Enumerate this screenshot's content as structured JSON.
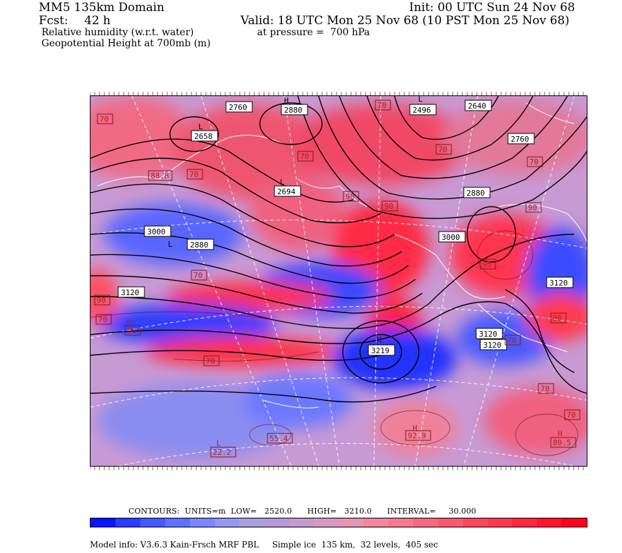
{
  "header": {
    "domain": "MM5 135km Domain",
    "init": "Init: 00 UTC Sun 24 Nov 68",
    "fcst_label": "Fcst:",
    "fcst_value": "42 h",
    "valid": "Valid: 18 UTC Mon 25 Nov 68 (10 PST Mon 25 Nov 68)",
    "field1": "Relative humidity (w.r.t. water)",
    "field1_level": "at pressure =  700 hPa",
    "field2": "Geopotential Height at 700mb (m)"
  },
  "map_labels": {
    "height": [
      {
        "text": "2760"
      },
      {
        "text": "2880"
      },
      {
        "text": "2496"
      },
      {
        "text": "2640"
      },
      {
        "text": "2760"
      },
      {
        "text": "2658"
      },
      {
        "text": "2694"
      },
      {
        "text": "3000"
      },
      {
        "text": "2880"
      },
      {
        "text": "2880"
      },
      {
        "text": "3000"
      },
      {
        "text": "3120"
      },
      {
        "text": "3120"
      },
      {
        "text": "3219"
      },
      {
        "text": "3120"
      },
      {
        "text": "3120"
      }
    ],
    "markers": [
      {
        "text": "H"
      },
      {
        "text": "L"
      },
      {
        "text": "L"
      },
      {
        "text": "L"
      },
      {
        "text": "L"
      },
      {
        "text": "H"
      },
      {
        "text": "H"
      },
      {
        "text": "H"
      },
      {
        "text": "H"
      },
      {
        "text": "L"
      }
    ],
    "rh": [
      {
        "text": "70"
      },
      {
        "text": "70"
      },
      {
        "text": "70"
      },
      {
        "text": "70"
      },
      {
        "text": "70"
      },
      {
        "text": "90"
      },
      {
        "text": "90"
      },
      {
        "text": "70"
      },
      {
        "text": "70"
      },
      {
        "text": "90"
      },
      {
        "text": "90"
      },
      {
        "text": "70"
      },
      {
        "text": "70"
      },
      {
        "text": "70"
      },
      {
        "text": "70"
      },
      {
        "text": "90"
      },
      {
        "text": "70"
      },
      {
        "text": "88.8"
      },
      {
        "text": "95"
      },
      {
        "text": "55.4"
      },
      {
        "text": "22.2"
      },
      {
        "text": "92.9"
      },
      {
        "text": "89.5"
      },
      {
        "text": "90"
      }
    ]
  },
  "colorbar": {
    "contours": "CONTOURS:",
    "units": "UNITS=m",
    "low": "LOW=   2520.0",
    "high": "HIGH=   3210.0",
    "interval": "INTERVAL=     30.000",
    "colors": [
      "#0a14ff",
      "#2a3cff",
      "#4658ff",
      "#6070ff",
      "#7c88ff",
      "#9698f0",
      "#a8a0e0",
      "#b49ad8",
      "#c49ad0",
      "#d49ac4",
      "#e496b4",
      "#f088a0",
      "#f47890",
      "#f66880",
      "#f85870",
      "#fa4860",
      "#fc3850",
      "#fe2840",
      "#ff1430",
      "#ff0020"
    ]
  },
  "footer": {
    "model": "Model info: V3.6.3 Kain-Frsch MRF PBL",
    "ice": "Simple ice  135 km,  32 levels,  405 sec"
  }
}
